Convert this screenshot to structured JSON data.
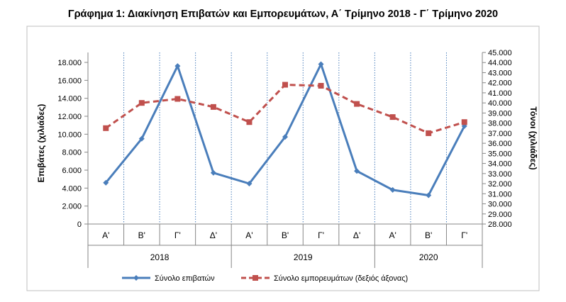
{
  "title": "Γράφημα 1: Διακίνηση Επιβατών και Εμπορευμάτων, Α΄ Τρίμηνο 2018 - Γ΄ Τρίμηνο 2020",
  "chart_data": {
    "type": "line",
    "title": "Γράφημα 1: Διακίνηση Επιβατών και Εμπορευμάτων, Α΄ Τρίμηνο 2018 - Γ΄ Τρίμηνο 2020",
    "categories": [
      "Α'",
      "Β'",
      "Γ'",
      "Δ'",
      "Α'",
      "Β'",
      "Γ'",
      "Δ'",
      "Α'",
      "Β'",
      "Γ'"
    ],
    "year_groups": [
      {
        "label": "2018",
        "count": 4
      },
      {
        "label": "2019",
        "count": 4
      },
      {
        "label": "2020",
        "count": 3
      }
    ],
    "ylabel": "Επιβάτες  (χιλιάδες)",
    "y2label": "Τόνοι  (χιλιάδες)",
    "ylim": [
      0,
      18000
    ],
    "y_ticks": [
      "0",
      "2.000",
      "4.000",
      "6.000",
      "8.000",
      "10.000",
      "12.000",
      "14.000",
      "16.000",
      "18.000"
    ],
    "y2lim": [
      28000,
      45000
    ],
    "y2_ticks": [
      "28.000",
      "29.000",
      "30.000",
      "31.000",
      "32.000",
      "33.000",
      "34.000",
      "35.000",
      "36.000",
      "37.000",
      "38.000",
      "39.000",
      "40.000",
      "41.000",
      "42.000",
      "43.000",
      "44.000",
      "45.000"
    ],
    "grid": "vertical dotted",
    "legend_position": "bottom",
    "series": [
      {
        "name": "Σύνολο επιβατών",
        "axis": "left",
        "color": "#4a7ebb",
        "marker": "diamond",
        "values": [
          4600,
          9500,
          17600,
          5700,
          4500,
          9700,
          17800,
          5900,
          3800,
          3200,
          10900
        ]
      },
      {
        "name": "Σύνολο εμπορευμάτων (δεξιός άξονας)",
        "axis": "right",
        "color": "#c0504d",
        "marker": "square",
        "dash": true,
        "values": [
          37500,
          40000,
          40400,
          39600,
          38100,
          41800,
          41700,
          39900,
          38600,
          37000,
          38100
        ]
      }
    ]
  }
}
